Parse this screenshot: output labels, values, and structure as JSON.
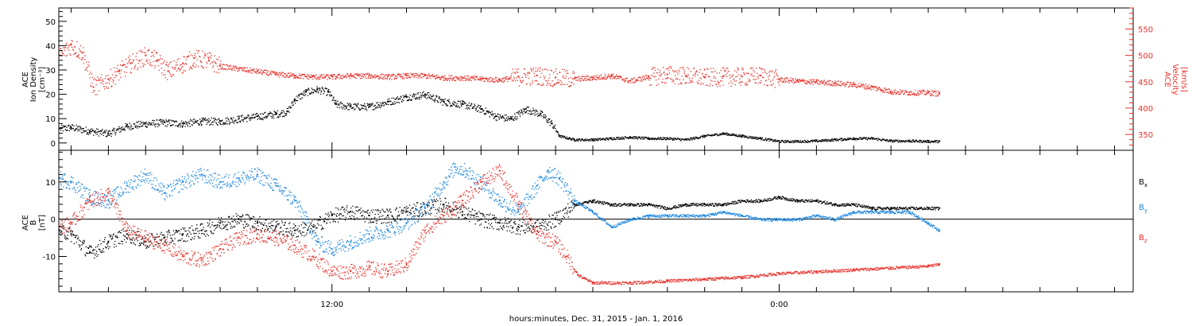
{
  "colors": {
    "black": "#000000",
    "red": "#e8302a",
    "blue": "#1c86e0"
  },
  "xaxis": {
    "title": "hours:minutes, Dec. 31, 2015 - Jan.  1, 2016",
    "tick_labels": [
      {
        "hour": 12,
        "label": "12:00"
      },
      {
        "hour": 24,
        "label": "0:00"
      }
    ]
  },
  "chart_data": [
    {
      "type": "scatter",
      "panel": "plasma",
      "x_unit": "hours since Dec. 31, 2015 00:00",
      "xlim": [
        4.67,
        33.5
      ],
      "left_axis": {
        "label_lines": [
          "ACE",
          "Ion Density",
          "[cm⁻³]"
        ],
        "ylim": [
          -3,
          55.5
        ],
        "ticks": [
          0,
          10,
          20,
          30,
          40,
          50
        ]
      },
      "right_axis": {
        "label_lines": [
          "ACE",
          "Velocity",
          "[km/s]"
        ],
        "ylim": [
          320,
          590
        ],
        "ticks": [
          350,
          400,
          450,
          500,
          550
        ]
      },
      "series": [
        {
          "key": "density",
          "axis": "left",
          "color": "black",
          "points": [
            [
              4.7,
              6
            ],
            [
              5.0,
              6.5
            ],
            [
              5.5,
              5
            ],
            [
              6.0,
              4
            ],
            [
              6.5,
              7
            ],
            [
              7.0,
              8
            ],
            [
              7.5,
              8.5
            ],
            [
              8.0,
              8
            ],
            [
              8.5,
              9
            ],
            [
              9.0,
              9
            ],
            [
              9.5,
              10
            ],
            [
              10.0,
              11
            ],
            [
              10.5,
              12
            ],
            [
              10.8,
              13
            ],
            [
              11.0,
              18
            ],
            [
              11.3,
              21
            ],
            [
              11.6,
              22
            ],
            [
              11.9,
              21
            ],
            [
              12.1,
              16
            ],
            [
              12.5,
              15
            ],
            [
              13.0,
              15
            ],
            [
              13.5,
              17
            ],
            [
              14.0,
              19
            ],
            [
              14.5,
              20
            ],
            [
              15.0,
              17
            ],
            [
              15.5,
              16
            ],
            [
              16.0,
              14
            ],
            [
              16.4,
              11
            ],
            [
              16.8,
              10
            ],
            [
              17.2,
              14
            ],
            [
              17.6,
              12
            ],
            [
              17.9,
              8
            ],
            [
              18.1,
              3
            ],
            [
              18.5,
              1.5
            ],
            [
              19.0,
              1.5
            ],
            [
              19.5,
              2
            ],
            [
              20.0,
              2.5
            ],
            [
              20.5,
              2
            ],
            [
              21.0,
              2
            ],
            [
              21.5,
              1.5
            ],
            [
              22.0,
              3
            ],
            [
              22.5,
              4
            ],
            [
              23.0,
              3
            ],
            [
              23.5,
              2
            ],
            [
              24.0,
              0.8
            ],
            [
              24.5,
              0.8
            ],
            [
              25.0,
              1
            ],
            [
              25.5,
              1.5
            ],
            [
              26.0,
              2
            ],
            [
              26.5,
              2
            ],
            [
              27.0,
              1
            ],
            [
              27.5,
              1
            ],
            [
              28.0,
              0.8
            ],
            [
              28.3,
              0.8
            ]
          ]
        },
        {
          "key": "velocity",
          "axis": "right",
          "color": "red",
          "points": [
            [
              4.7,
              500
            ],
            [
              5.0,
              520
            ],
            [
              5.3,
              505
            ],
            [
              5.6,
              440
            ],
            [
              6.0,
              455
            ],
            [
              6.3,
              470
            ],
            [
              6.6,
              485
            ],
            [
              7.0,
              500
            ],
            [
              7.3,
              490
            ],
            [
              7.6,
              470
            ],
            [
              8.0,
              485
            ],
            [
              8.3,
              495
            ],
            [
              8.7,
              490
            ],
            [
              9.0,
              480
            ],
            [
              9.5,
              475
            ],
            [
              10.0,
              470
            ],
            [
              10.5,
              465
            ],
            [
              11.0,
              462
            ],
            [
              11.5,
              460
            ],
            [
              12.0,
              460
            ],
            [
              12.5,
              462
            ],
            [
              13.0,
              462
            ],
            [
              13.5,
              460
            ],
            [
              14.0,
              462
            ],
            [
              14.5,
              462
            ],
            [
              15.0,
              458
            ],
            [
              15.5,
              458
            ],
            [
              16.0,
              456
            ],
            [
              16.5,
              454
            ],
            [
              17.0,
              460
            ],
            [
              17.5,
              462
            ],
            [
              18.0,
              458
            ],
            [
              18.5,
              456
            ],
            [
              19.0,
              458
            ],
            [
              19.5,
              462
            ],
            [
              20.0,
              452
            ],
            [
              20.5,
              460
            ],
            [
              21.0,
              464
            ],
            [
              21.5,
              462
            ],
            [
              22.0,
              458
            ],
            [
              22.5,
              460
            ],
            [
              23.0,
              460
            ],
            [
              23.5,
              462
            ],
            [
              24.0,
              455
            ],
            [
              24.5,
              452
            ],
            [
              25.0,
              450
            ],
            [
              25.5,
              448
            ],
            [
              26.0,
              445
            ],
            [
              26.5,
              440
            ],
            [
              27.0,
              432
            ],
            [
              27.5,
              430
            ],
            [
              28.0,
              430
            ],
            [
              28.3,
              428
            ]
          ]
        }
      ]
    },
    {
      "type": "scatter",
      "panel": "magnetic_field",
      "x_unit": "hours since Dec. 31, 2015 00:00",
      "xlim": [
        4.67,
        33.5
      ],
      "left_axis": {
        "label_lines": [
          "ACE",
          "B",
          "[nT]"
        ],
        "ylim": [
          -19.5,
          18.5
        ],
        "ticks": [
          -10,
          0,
          10
        ]
      },
      "zero_line": true,
      "legend_placement": "right",
      "series": [
        {
          "key": "bx",
          "label": "B",
          "subscript": "x",
          "color": "black",
          "points": [
            [
              4.7,
              -3
            ],
            [
              5.0,
              -4
            ],
            [
              5.5,
              -9
            ],
            [
              6.0,
              -6
            ],
            [
              6.5,
              -4
            ],
            [
              7.0,
              -6
            ],
            [
              7.5,
              -5
            ],
            [
              8.0,
              -4
            ],
            [
              8.5,
              -3
            ],
            [
              9.0,
              -1
            ],
            [
              9.5,
              0
            ],
            [
              10.0,
              -1
            ],
            [
              10.5,
              -2
            ],
            [
              11.0,
              -3
            ],
            [
              11.5,
              -2
            ],
            [
              12.0,
              1
            ],
            [
              12.5,
              2
            ],
            [
              13.0,
              1
            ],
            [
              13.5,
              1
            ],
            [
              14.0,
              2
            ],
            [
              14.5,
              3
            ],
            [
              15.0,
              4
            ],
            [
              15.5,
              2
            ],
            [
              16.0,
              0
            ],
            [
              16.5,
              -1
            ],
            [
              17.0,
              -2
            ],
            [
              17.5,
              -2
            ],
            [
              18.0,
              0
            ],
            [
              18.5,
              4
            ],
            [
              19.0,
              5
            ],
            [
              19.5,
              4
            ],
            [
              20.0,
              4
            ],
            [
              20.5,
              4
            ],
            [
              21.0,
              3
            ],
            [
              21.5,
              4
            ],
            [
              22.0,
              4
            ],
            [
              22.5,
              4
            ],
            [
              23.0,
              5
            ],
            [
              23.5,
              5
            ],
            [
              24.0,
              6
            ],
            [
              24.5,
              5
            ],
            [
              25.0,
              5
            ],
            [
              25.5,
              4
            ],
            [
              26.0,
              4
            ],
            [
              26.5,
              3
            ],
            [
              27.0,
              3
            ],
            [
              27.5,
              3
            ],
            [
              28.0,
              3
            ],
            [
              28.3,
              3
            ]
          ]
        },
        {
          "key": "by",
          "label": "B",
          "subscript": "y",
          "color": "blue",
          "points": [
            [
              4.7,
              11
            ],
            [
              5.0,
              10
            ],
            [
              5.5,
              6
            ],
            [
              6.0,
              5
            ],
            [
              6.5,
              9
            ],
            [
              7.0,
              12
            ],
            [
              7.5,
              7
            ],
            [
              8.0,
              10
            ],
            [
              8.5,
              12
            ],
            [
              9.0,
              10
            ],
            [
              9.5,
              11
            ],
            [
              10.0,
              12
            ],
            [
              10.5,
              9
            ],
            [
              11.0,
              5
            ],
            [
              11.3,
              0
            ],
            [
              11.6,
              -6
            ],
            [
              12.0,
              -8
            ],
            [
              12.5,
              -6
            ],
            [
              13.0,
              -4
            ],
            [
              13.5,
              -3
            ],
            [
              14.0,
              -1
            ],
            [
              14.5,
              3
            ],
            [
              15.0,
              10
            ],
            [
              15.3,
              14
            ],
            [
              15.6,
              13
            ],
            [
              16.0,
              10
            ],
            [
              16.5,
              5
            ],
            [
              17.0,
              2
            ],
            [
              17.5,
              9
            ],
            [
              17.8,
              13
            ],
            [
              18.1,
              11
            ],
            [
              18.5,
              5
            ],
            [
              19.0,
              2
            ],
            [
              19.5,
              -2
            ],
            [
              20.0,
              0
            ],
            [
              20.5,
              1
            ],
            [
              21.0,
              1
            ],
            [
              21.5,
              1
            ],
            [
              22.0,
              1
            ],
            [
              22.5,
              2
            ],
            [
              23.0,
              1
            ],
            [
              23.5,
              0
            ],
            [
              24.0,
              0
            ],
            [
              24.5,
              0
            ],
            [
              25.0,
              1
            ],
            [
              25.5,
              0
            ],
            [
              26.0,
              2
            ],
            [
              26.5,
              2
            ],
            [
              27.0,
              2
            ],
            [
              27.5,
              2
            ],
            [
              28.0,
              -1
            ],
            [
              28.3,
              -3
            ]
          ]
        },
        {
          "key": "bz",
          "label": "B",
          "subscript": "z",
          "color": "red",
          "points": [
            [
              4.7,
              -2
            ],
            [
              5.0,
              -1
            ],
            [
              5.5,
              5
            ],
            [
              6.0,
              7
            ],
            [
              6.5,
              -3
            ],
            [
              7.0,
              -5
            ],
            [
              7.5,
              -7
            ],
            [
              8.0,
              -10
            ],
            [
              8.5,
              -11
            ],
            [
              9.0,
              -8
            ],
            [
              9.5,
              -5
            ],
            [
              10.0,
              -4
            ],
            [
              10.5,
              -5
            ],
            [
              11.0,
              -7
            ],
            [
              11.5,
              -10
            ],
            [
              12.0,
              -14
            ],
            [
              12.5,
              -14
            ],
            [
              13.0,
              -13
            ],
            [
              13.5,
              -14
            ],
            [
              14.0,
              -12
            ],
            [
              14.5,
              -3
            ],
            [
              15.0,
              1
            ],
            [
              15.5,
              5
            ],
            [
              16.0,
              10
            ],
            [
              16.5,
              13
            ],
            [
              17.0,
              4
            ],
            [
              17.5,
              -4
            ],
            [
              18.0,
              -6
            ],
            [
              18.3,
              -10
            ],
            [
              18.6,
              -15
            ],
            [
              19.0,
              -17
            ],
            [
              20.0,
              -17
            ],
            [
              21.0,
              -16.5
            ],
            [
              22.0,
              -16
            ],
            [
              23.0,
              -15.5
            ],
            [
              24.0,
              -14.5
            ],
            [
              25.0,
              -14
            ],
            [
              26.0,
              -13.5
            ],
            [
              27.0,
              -13
            ],
            [
              28.0,
              -12.5
            ],
            [
              28.3,
              -12
            ]
          ]
        }
      ]
    }
  ]
}
